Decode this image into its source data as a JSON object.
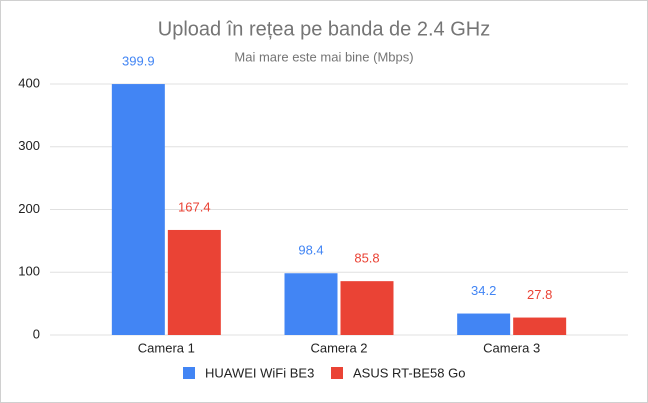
{
  "chart_data": {
    "type": "bar",
    "title": "Upload în rețea pe banda de 2.4 GHz",
    "subtitle": "Mai mare este mai bine (Mbps)",
    "categories": [
      "Camera 1",
      "Camera 2",
      "Camera 3"
    ],
    "series": [
      {
        "name": "HUAWEI WiFi BE3",
        "color": "#4285f4",
        "values": [
          399.9,
          98.4,
          34.2
        ]
      },
      {
        "name": "ASUS RT-BE58 Go",
        "color": "#ea4335",
        "values": [
          167.4,
          85.8,
          27.8
        ]
      }
    ],
    "ylim": [
      0,
      400
    ],
    "yticks": [
      0,
      100,
      200,
      300,
      400
    ],
    "grid": true,
    "legend": "bottom"
  }
}
